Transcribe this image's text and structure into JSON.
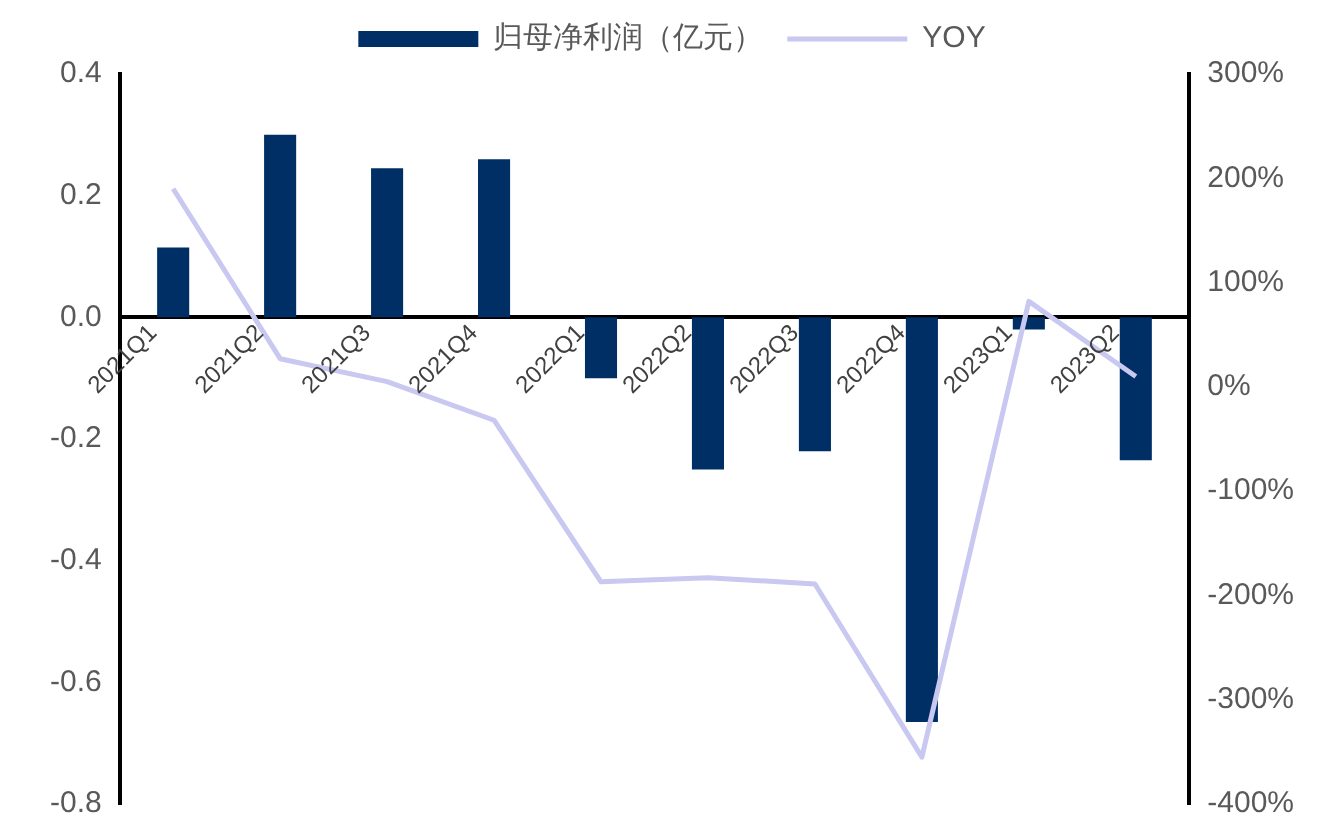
{
  "chart_data": {
    "type": "bar",
    "categories": [
      "2021Q1",
      "2021Q2",
      "2021Q3",
      "2021Q4",
      "2022Q1",
      "2022Q2",
      "2022Q3",
      "2022Q4",
      "2023Q1",
      "2023Q2"
    ],
    "series": [
      {
        "name": "归母净利润（亿元）",
        "color": "#002f66",
        "values": [
          0.115,
          0.3,
          0.245,
          0.26,
          -0.1,
          -0.25,
          -0.22,
          -0.665,
          -0.02,
          -0.235
        ]
      },
      {
        "name": "YOY",
        "type": "line",
        "axis": "y2",
        "color": "#c8c8f0",
        "values": [
          190,
          27,
          5,
          -32,
          -187,
          -183,
          -189,
          -355,
          82,
          10
        ]
      }
    ],
    "ylim": [
      -0.8,
      0.4
    ],
    "yticks": [
      {
        "value": -0.8,
        "label": "-0.8"
      },
      {
        "value": -0.6,
        "label": "-0.6"
      },
      {
        "value": -0.4,
        "label": "-0.4"
      },
      {
        "value": -0.2,
        "label": "-0.2"
      },
      {
        "value": 0,
        "label": "0.0"
      },
      {
        "value": 0.2,
        "label": "0.2"
      },
      {
        "value": 0.4,
        "label": "0.4"
      }
    ],
    "y2lim": [
      -400,
      300
    ],
    "y2ticks": [
      {
        "value": -400,
        "label": "-400%"
      },
      {
        "value": -300,
        "label": "-300%"
      },
      {
        "value": -200,
        "label": "-200%"
      },
      {
        "value": -100,
        "label": "-100%"
      },
      {
        "value": 0,
        "label": "0%"
      },
      {
        "value": 100,
        "label": "100%"
      },
      {
        "value": 200,
        "label": "200%"
      },
      {
        "value": 300,
        "label": "300%"
      }
    ],
    "grid": false,
    "legend": "top",
    "marker": "none",
    "line_style": "solid"
  }
}
